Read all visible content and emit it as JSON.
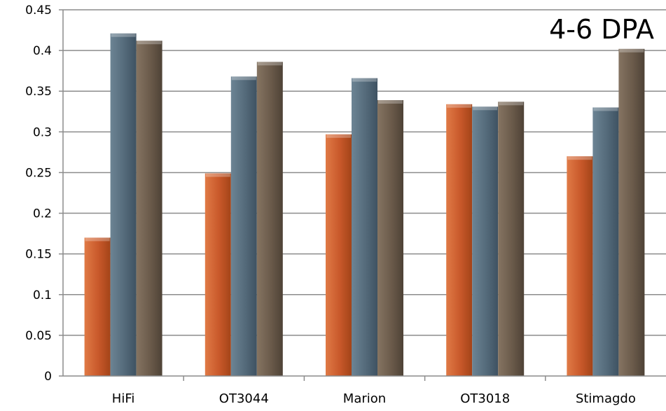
{
  "chart_data": {
    "type": "bar",
    "title": "4-6 DPA",
    "xlabel": "",
    "ylabel": "",
    "categories": [
      "HiFi",
      "OT3044",
      "Marion",
      "OT3018",
      "Stimagdo"
    ],
    "series": [
      {
        "color": "#c8582a",
        "values": [
          0.17,
          0.249,
          0.297,
          0.334,
          0.27
        ]
      },
      {
        "color": "#546a7a",
        "values": [
          0.421,
          0.368,
          0.366,
          0.331,
          0.33
        ]
      },
      {
        "color": "#6a5a4a",
        "values": [
          0.412,
          0.386,
          0.339,
          0.337,
          0.402
        ]
      }
    ],
    "ylim": [
      0,
      0.45
    ],
    "yticks": [
      "0",
      "0.05",
      "0.1",
      "0.15",
      "0.2",
      "0.25",
      "0.3",
      "0.35",
      "0.4",
      "0.45"
    ],
    "grid": true,
    "legend": "none"
  }
}
